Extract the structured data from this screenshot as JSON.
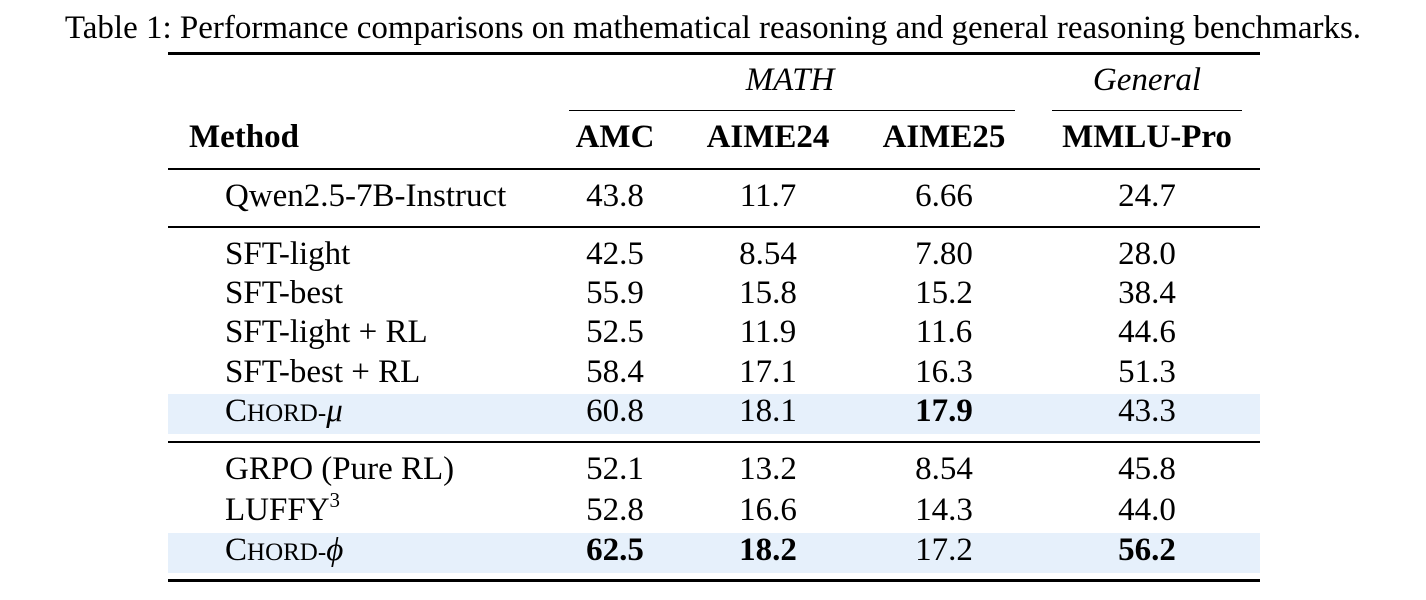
{
  "caption": "Table 1: Performance comparisons on mathematical reasoning and general reasoning benchmarks.",
  "groups": {
    "math": "MATH",
    "general": "General"
  },
  "columns": {
    "method": "Method",
    "amc": "AMC",
    "aime24": "AIME24",
    "aime25": "AIME25",
    "mmlu": "MMLU-Pro"
  },
  "rows": [
    {
      "method": "Qwen2.5-7B-Instruct",
      "amc": "43.8",
      "aime24": "11.7",
      "aime25": "6.66",
      "mmlu": "24.7"
    },
    {
      "method": "SFT-light",
      "amc": "42.5",
      "aime24": "8.54",
      "aime25": "7.80",
      "mmlu": "28.0"
    },
    {
      "method": "SFT-best",
      "amc": "55.9",
      "aime24": "15.8",
      "aime25": "15.2",
      "mmlu": "38.4"
    },
    {
      "method": "SFT-light + RL",
      "amc": "52.5",
      "aime24": "11.9",
      "aime25": "11.6",
      "mmlu": "44.6"
    },
    {
      "method": "SFT-best + RL",
      "amc": "58.4",
      "aime24": "17.1",
      "aime25": "16.3",
      "mmlu": "51.3"
    },
    {
      "method_c": "C",
      "method_rest": "HORD-",
      "method_sym": "μ",
      "amc": "60.8",
      "aime24": "18.1",
      "aime25": "17.9",
      "mmlu": "43.3"
    },
    {
      "method": "GRPO (Pure RL)",
      "amc": "52.1",
      "aime24": "13.2",
      "aime25": "8.54",
      "mmlu": "45.8"
    },
    {
      "method": "LUFFY",
      "method_sup": "3",
      "amc": "52.8",
      "aime24": "16.6",
      "aime25": "14.3",
      "mmlu": "44.0"
    },
    {
      "method_c": "C",
      "method_rest": "HORD-",
      "method_sym": "ϕ",
      "amc": "62.5",
      "aime24": "18.2",
      "aime25": "17.2",
      "mmlu": "56.2"
    }
  ]
}
